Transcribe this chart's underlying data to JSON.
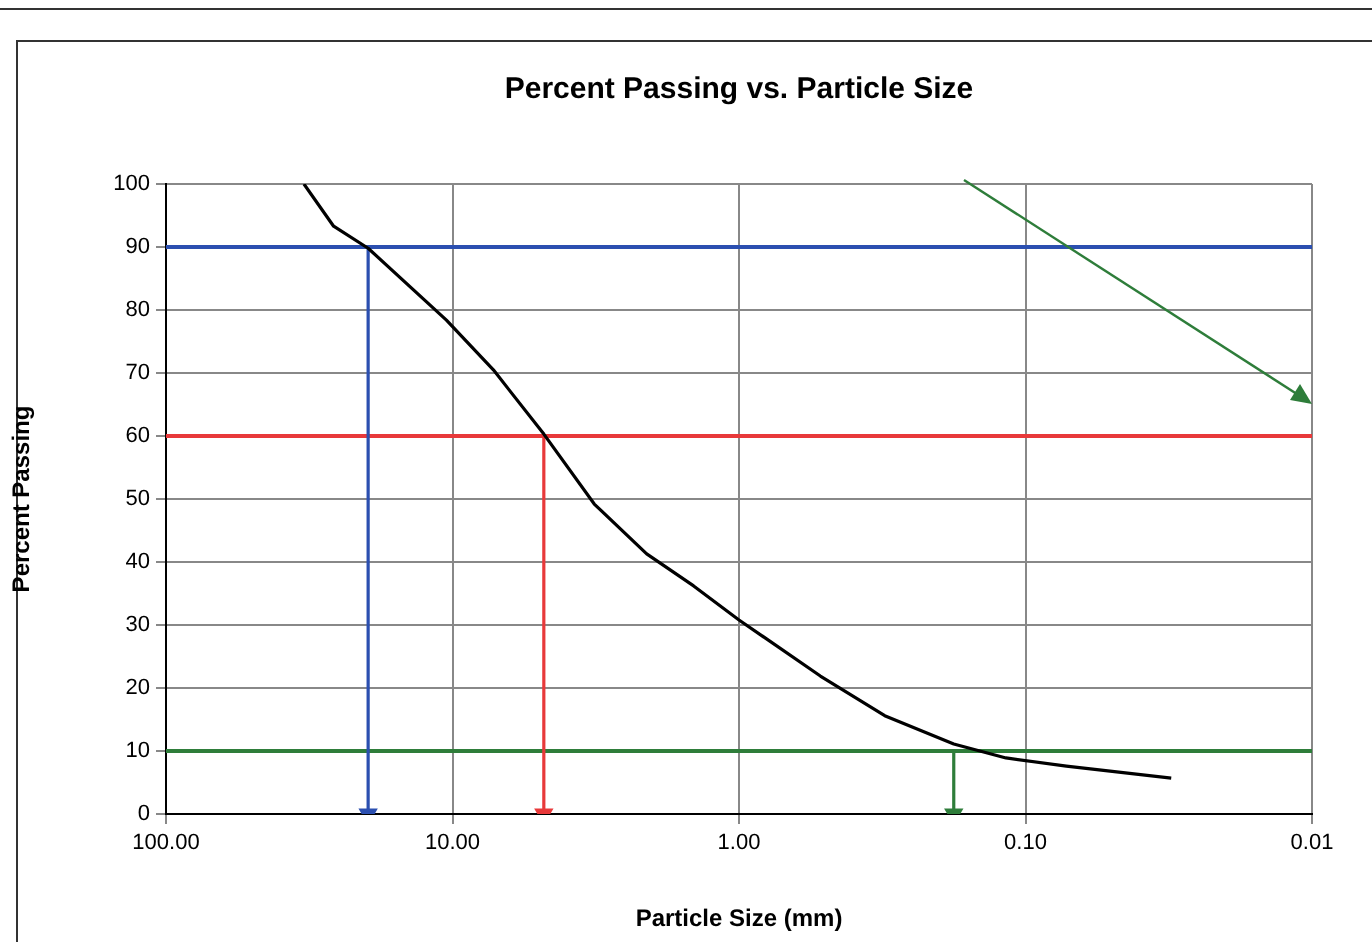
{
  "chart_data": {
    "type": "line",
    "title": "Percent Passing vs. Particle Size",
    "xlabel": "Particle Size (mm)",
    "ylabel": "Percent Passing",
    "log": "x",
    "xlim": [
      100,
      0.01
    ],
    "xticks": [
      {
        "value": 100,
        "label": "100.00"
      },
      {
        "value": 10,
        "label": "10.00"
      },
      {
        "value": 1,
        "label": "1.00"
      },
      {
        "value": 0.1,
        "label": "0.10"
      },
      {
        "value": 0.01,
        "label": "0.01"
      }
    ],
    "ylim": [
      0,
      100
    ],
    "yticks": [
      0,
      10,
      20,
      30,
      40,
      50,
      60,
      70,
      80,
      90,
      100
    ],
    "grid": true,
    "legend": false,
    "line_style": "solid",
    "series": [
      {
        "color": "#000000",
        "marker": "none",
        "x": [
          33,
          26,
          19.7,
          10.5,
          7.2,
          4.8,
          3.2,
          2.1,
          1.44,
          1.0,
          0.52,
          0.31,
          0.178,
          0.117,
          0.072,
          0.031
        ],
        "values": [
          100,
          93.3,
          89.8,
          78.4,
          70.5,
          60.3,
          49.2,
          41.3,
          36.2,
          30.8,
          21.9,
          15.6,
          11.1,
          8.9,
          7.6,
          5.7
        ]
      },
      {
        "color": "#2b4fb0",
        "marker": "triangle",
        "x": [
          19.7,
          19.7
        ],
        "values": [
          90,
          0
        ]
      },
      {
        "color": "#e8393a",
        "marker": "triangle",
        "x": [
          4.8,
          4.8
        ],
        "values": [
          60,
          0
        ]
      },
      {
        "color": "#2e7d3a",
        "marker": "triangle",
        "x": [
          0.178,
          0.178
        ],
        "values": [
          10,
          0
        ]
      }
    ],
    "ref_lines": [
      {
        "axis": "y",
        "value": 90,
        "color": "#2b4fb0"
      },
      {
        "axis": "y",
        "value": 60,
        "color": "#e8393a"
      },
      {
        "axis": "y",
        "value": 10,
        "color": "#2e7d3a"
      }
    ]
  }
}
